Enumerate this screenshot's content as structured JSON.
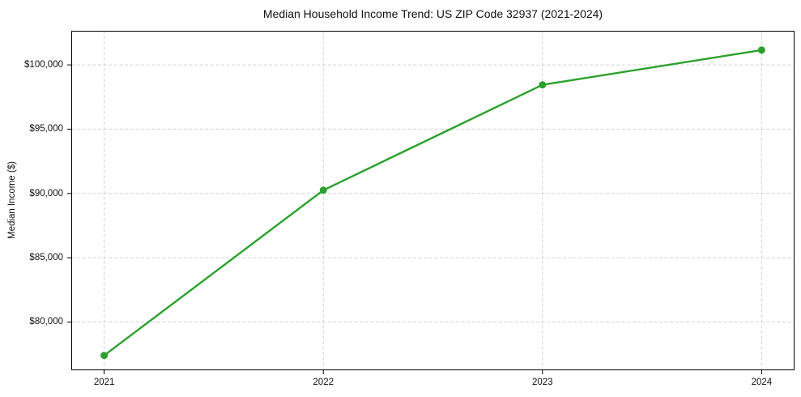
{
  "chart_data": {
    "type": "line",
    "title": "Median Household Income Trend: US ZIP Code 32937 (2021-2024)",
    "xlabel": "",
    "ylabel": "Median Income ($)",
    "categories": [
      "2021",
      "2022",
      "2023",
      "2024"
    ],
    "values": [
      77400,
      90250,
      98450,
      101150
    ],
    "ylim": [
      76250,
      102650
    ],
    "yticks": [
      80000,
      85000,
      90000,
      95000,
      100000
    ],
    "ytick_labels": [
      "$80,000",
      "$85,000",
      "$90,000",
      "$95,000",
      "$100,000"
    ],
    "grid": true,
    "grid_style": "dashed",
    "legend_position": "none",
    "line_color": "#2ca02c",
    "marker": "circle",
    "marker_color": "#2ca02c",
    "grid_color": "#d2d2d2",
    "axis_color": "#000000",
    "background": "#ffffff"
  }
}
